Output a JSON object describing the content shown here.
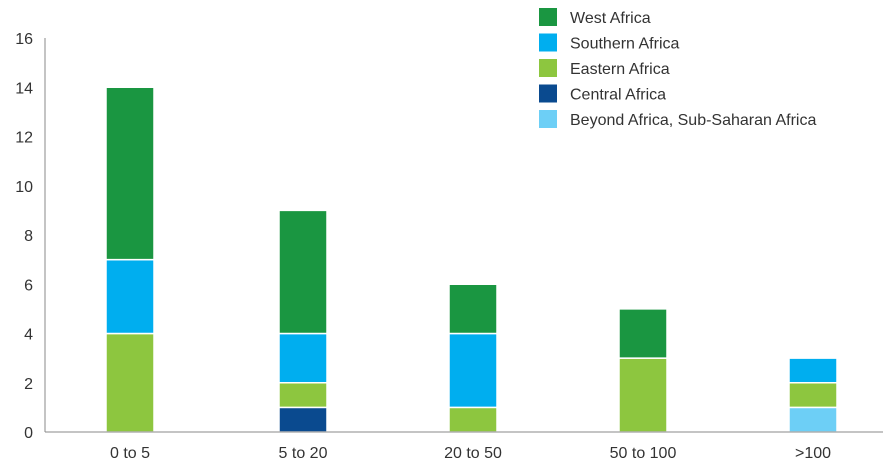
{
  "chart_data": {
    "type": "bar",
    "stacked": true,
    "title": "",
    "xlabel": "",
    "ylabel": "",
    "ylim": [
      0,
      16
    ],
    "yticks": [
      0,
      2,
      4,
      6,
      8,
      10,
      12,
      14,
      16
    ],
    "grid": false,
    "legend_position": "top-right",
    "categories": [
      "0 to 5",
      "5 to 20",
      "20 to 50",
      "50 to 100",
      ">100"
    ],
    "series": [
      {
        "name": "Beyond Africa, Sub-Saharan Africa",
        "color": "#6dcff6",
        "values": [
          0,
          0,
          0,
          0,
          1
        ]
      },
      {
        "name": "Central Africa",
        "color": "#0a4a8f",
        "values": [
          0,
          1,
          0,
          0,
          0
        ]
      },
      {
        "name": "Eastern Africa",
        "color": "#8dc63f",
        "values": [
          4,
          1,
          1,
          3,
          1
        ]
      },
      {
        "name": "Southern Africa",
        "color": "#00aeef",
        "values": [
          3,
          2,
          3,
          0,
          1
        ]
      },
      {
        "name": "West Africa",
        "color": "#1a9641",
        "values": [
          7,
          5,
          2,
          2,
          0
        ]
      }
    ],
    "legend_order": [
      "West Africa",
      "Southern Africa",
      "Eastern Africa",
      "Central Africa",
      "Beyond Africa, Sub-Saharan Africa"
    ]
  }
}
